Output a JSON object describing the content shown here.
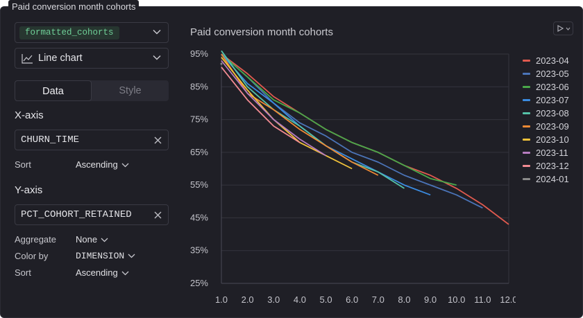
{
  "tab_label": "Paid conversion month cohorts",
  "sidebar": {
    "dataset": "formatted_cohorts",
    "chart_type": "Line chart",
    "tabs": [
      {
        "label": "Data",
        "active": true
      },
      {
        "label": "Style",
        "active": false
      }
    ],
    "x_axis": {
      "label": "X-axis",
      "column": "CHURN_TIME",
      "sort_label": "Sort",
      "sort_value": "Ascending"
    },
    "y_axis": {
      "label": "Y-axis",
      "column": "PCT_COHORT_RETAINED",
      "aggregate_label": "Aggregate",
      "aggregate_value": "None",
      "color_by_label": "Color by",
      "color_by_value": "DIMENSION",
      "sort_label": "Sort",
      "sort_value": "Ascending"
    }
  },
  "chart_data": {
    "type": "line",
    "title": "Paid conversion month cohorts",
    "xlabel": "",
    "ylabel": "",
    "xlim": [
      1.0,
      12.0
    ],
    "ylim": [
      25,
      95
    ],
    "x_ticks": [
      "1.0",
      "2.0",
      "3.0",
      "4.0",
      "5.0",
      "6.0",
      "7.0",
      "8.0",
      "9.0",
      "10.0",
      "11.0",
      "12.0"
    ],
    "y_ticks": [
      "25%",
      "35%",
      "45%",
      "55%",
      "65%",
      "75%",
      "85%",
      "95%"
    ],
    "grid": true,
    "legend_position": "right",
    "series": [
      {
        "name": "2023-04",
        "color": "#e05a4f",
        "x": [
          1,
          2,
          3,
          4,
          5,
          6,
          7,
          8,
          9,
          10,
          11,
          12
        ],
        "y": [
          95,
          89,
          82,
          77,
          72,
          68,
          65,
          61,
          58,
          54,
          49,
          43
        ]
      },
      {
        "name": "2023-05",
        "color": "#4b74b8",
        "x": [
          1,
          2,
          3,
          4,
          5,
          6,
          7,
          8,
          9,
          10,
          11
        ],
        "y": [
          95,
          88,
          80,
          74,
          70,
          65,
          62,
          58,
          55,
          52,
          48
        ]
      },
      {
        "name": "2023-06",
        "color": "#4aa84a",
        "x": [
          1,
          2,
          3,
          4,
          5,
          6,
          7,
          8,
          9,
          10
        ],
        "y": [
          95,
          88,
          81,
          77,
          72,
          68,
          65,
          61,
          57,
          55
        ]
      },
      {
        "name": "2023-07",
        "color": "#3b8be0",
        "x": [
          1,
          2,
          3,
          4,
          5,
          6,
          7,
          8,
          9
        ],
        "y": [
          95,
          86,
          80,
          73,
          67,
          63,
          59,
          55,
          52
        ]
      },
      {
        "name": "2023-08",
        "color": "#55c2a8",
        "x": [
          1,
          2,
          3,
          4,
          5,
          6,
          7,
          8
        ],
        "y": [
          96,
          85,
          78,
          73,
          67,
          62,
          59,
          54
        ]
      },
      {
        "name": "2023-09",
        "color": "#f08a35",
        "x": [
          1,
          2,
          3,
          4,
          5,
          6,
          7
        ],
        "y": [
          95,
          83,
          78,
          72,
          67,
          62,
          58
        ]
      },
      {
        "name": "2023-10",
        "color": "#f2c23a",
        "x": [
          1,
          2,
          3,
          4,
          5,
          6
        ],
        "y": [
          94,
          84,
          75,
          68,
          64,
          60
        ]
      },
      {
        "name": "2023-11",
        "color": "#b77cc0",
        "x": [
          1,
          2,
          3,
          4,
          5
        ],
        "y": [
          93,
          83,
          75,
          69,
          64
        ]
      },
      {
        "name": "2023-12",
        "color": "#f28b93",
        "x": [
          1,
          2,
          3,
          4
        ],
        "y": [
          91,
          81,
          73,
          68
        ]
      },
      {
        "name": "2024-01",
        "color": "#8a8a8a",
        "x": [
          1
        ],
        "y": [
          92
        ]
      }
    ]
  }
}
